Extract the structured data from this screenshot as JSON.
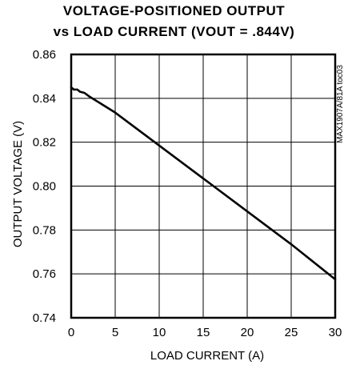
{
  "chart_data": {
    "type": "line",
    "title": "VOLTAGE-POSITIONED OUTPUT",
    "subtitle": "vs LOAD CURRENT (VOUT = .844V)",
    "xlabel": "LOAD CURRENT (A)",
    "ylabel": "OUTPUT VOLTAGE (V)",
    "watermark": "MAX1907A/81A toc03",
    "xlim": [
      0,
      30
    ],
    "ylim": [
      0.74,
      0.86
    ],
    "x_ticks": [
      0,
      5,
      10,
      15,
      20,
      25,
      30
    ],
    "y_ticks": [
      0.74,
      0.76,
      0.78,
      0.8,
      0.82,
      0.84,
      0.86
    ],
    "x_tick_labels": [
      "0",
      "5",
      "10",
      "15",
      "20",
      "25",
      "30"
    ],
    "y_tick_labels": [
      "0.74",
      "0.76",
      "0.78",
      "0.80",
      "0.82",
      "0.84",
      "0.86"
    ],
    "grid": true,
    "series": [
      {
        "x": [
          0,
          0.3,
          0.7,
          1.0,
          1.5,
          2,
          3,
          5,
          10,
          15,
          20,
          25,
          30
        ],
        "y": [
          0.845,
          0.844,
          0.844,
          0.843,
          0.8425,
          0.841,
          0.8385,
          0.8335,
          0.8185,
          0.8035,
          0.7885,
          0.7735,
          0.7575
        ]
      }
    ]
  }
}
